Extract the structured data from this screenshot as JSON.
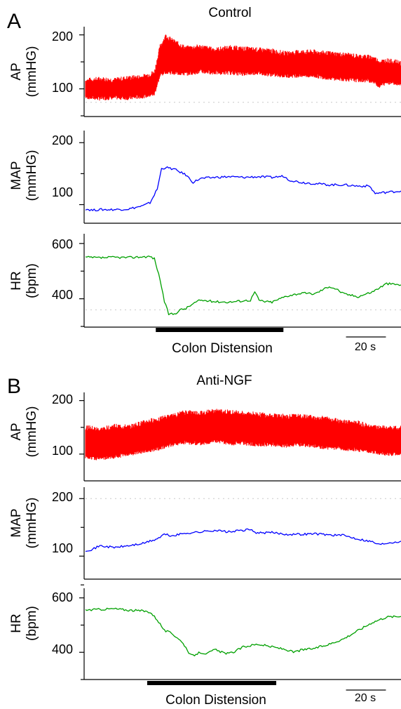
{
  "panels": [
    {
      "letter": "A",
      "title": "Control",
      "stimulus_label": "Colon Distension",
      "stimulus_start_s": 49,
      "stimulus_end_s": 138,
      "scale_bar_label": "20 s",
      "scale_bar_seconds": 20
    },
    {
      "letter": "B",
      "title": "Anti-NGF",
      "stimulus_label": "Colon Distension",
      "stimulus_start_s": 43,
      "stimulus_end_s": 133,
      "scale_bar_label": "20 s",
      "scale_bar_seconds": 20
    }
  ],
  "chart_data": [
    {
      "panel": "A",
      "title": "Control",
      "type": "line",
      "ylabel": [
        "AP",
        "(mmHG)"
      ],
      "x_range_s": [
        0,
        220
      ],
      "ylim": [
        50,
        210
      ],
      "yticks": [
        "200",
        "100"
      ],
      "ytick_values": [
        200,
        100
      ],
      "minor_ticks": [
        50,
        150
      ],
      "reference_line": 75,
      "color": "#ff0000",
      "band": true,
      "series": [
        {
          "x": [
            0,
            10,
            20,
            30,
            40,
            48,
            52,
            56,
            60,
            70,
            80,
            90,
            100,
            110,
            120,
            130,
            140,
            150,
            160,
            170,
            180,
            190,
            200,
            205,
            210,
            220
          ],
          "upper": [
            115,
            118,
            116,
            120,
            122,
            130,
            178,
            198,
            190,
            175,
            178,
            172,
            176,
            174,
            172,
            170,
            165,
            168,
            168,
            165,
            163,
            160,
            158,
            150,
            152,
            148
          ],
          "lower": [
            85,
            82,
            84,
            83,
            86,
            90,
            125,
            132,
            130,
            128,
            132,
            130,
            130,
            128,
            130,
            126,
            124,
            125,
            124,
            120,
            118,
            116,
            115,
            105,
            112,
            110
          ]
        }
      ]
    },
    {
      "panel": "A",
      "type": "line",
      "ylabel": [
        "MAP",
        "(mmHG)"
      ],
      "x_range_s": [
        0,
        220
      ],
      "ylim": [
        70,
        215
      ],
      "yticks": [
        "200",
        "100"
      ],
      "ytick_values": [
        200,
        100
      ],
      "minor_ticks": [
        150
      ],
      "color": "#0000ff",
      "series": [
        {
          "x": [
            0,
            5,
            10,
            20,
            30,
            40,
            45,
            50,
            53,
            56,
            62,
            70,
            75,
            80,
            90,
            100,
            110,
            120,
            130,
            138,
            142,
            150,
            160,
            170,
            180,
            190,
            198,
            202,
            210,
            220
          ],
          "y": [
            93,
            91,
            92,
            92,
            93,
            98,
            103,
            125,
            158,
            160,
            157,
            148,
            136,
            142,
            144,
            145,
            144,
            145,
            144,
            146,
            140,
            136,
            134,
            132,
            132,
            130,
            130,
            118,
            120,
            122
          ]
        }
      ]
    },
    {
      "panel": "A",
      "type": "line",
      "ylabel": [
        "HR",
        "(bpm)"
      ],
      "x_range_s": [
        0,
        220
      ],
      "ylim": [
        300,
        625
      ],
      "yticks": [
        "600",
        "400"
      ],
      "ytick_values": [
        600,
        400
      ],
      "minor_ticks": [
        500,
        300
      ],
      "reference_line": 360,
      "color": "#00a000",
      "series": [
        {
          "x": [
            0,
            10,
            20,
            30,
            40,
            45,
            48,
            52,
            55,
            58,
            62,
            66,
            70,
            76,
            80,
            90,
            100,
            110,
            115,
            118,
            121,
            125,
            130,
            140,
            150,
            160,
            165,
            170,
            175,
            180,
            190,
            200,
            210,
            220
          ],
          "y": [
            550,
            548,
            550,
            549,
            552,
            553,
            545,
            470,
            390,
            345,
            345,
            360,
            365,
            385,
            395,
            390,
            388,
            393,
            395,
            425,
            395,
            390,
            388,
            410,
            420,
            418,
            432,
            445,
            435,
            418,
            408,
            425,
            455,
            450
          ]
        }
      ]
    },
    {
      "panel": "B",
      "title": "Anti-NGF",
      "type": "line",
      "ylabel": [
        "AP",
        "(mmHG)"
      ],
      "x_range_s": [
        0,
        220
      ],
      "ylim": [
        50,
        210
      ],
      "yticks": [
        "200",
        "100"
      ],
      "ytick_values": [
        200,
        100
      ],
      "minor_ticks": [
        150
      ],
      "color": "#ff0000",
      "band": true,
      "series": [
        {
          "x": [
            0,
            10,
            20,
            30,
            40,
            50,
            60,
            70,
            80,
            90,
            100,
            110,
            120,
            130,
            140,
            150,
            160,
            170,
            180,
            190,
            200,
            210,
            220
          ],
          "upper": [
            150,
            145,
            152,
            150,
            158,
            165,
            170,
            178,
            176,
            180,
            178,
            176,
            174,
            172,
            170,
            170,
            168,
            165,
            160,
            158,
            150,
            148,
            148
          ],
          "lower": [
            95,
            92,
            95,
            100,
            105,
            110,
            118,
            122,
            120,
            125,
            120,
            120,
            118,
            118,
            116,
            118,
            115,
            112,
            110,
            108,
            105,
            100,
            102
          ]
        }
      ]
    },
    {
      "panel": "B",
      "type": "line",
      "ylabel": [
        "MAP",
        "(mmHG)"
      ],
      "x_range_s": [
        0,
        220
      ],
      "ylim": [
        60,
        215
      ],
      "yticks": [
        "200",
        "100"
      ],
      "ytick_values": [
        200,
        100
      ],
      "minor_ticks": [
        150,
        50
      ],
      "reference_line": 200,
      "color": "#0000ff",
      "series": [
        {
          "x": [
            0,
            5,
            10,
            20,
            30,
            40,
            50,
            55,
            60,
            70,
            80,
            90,
            100,
            110,
            115,
            120,
            130,
            140,
            150,
            160,
            170,
            180,
            190,
            200,
            205,
            210,
            220
          ],
          "y": [
            110,
            112,
            118,
            115,
            118,
            122,
            130,
            138,
            135,
            140,
            142,
            145,
            142,
            145,
            146,
            140,
            141,
            138,
            138,
            139,
            137,
            136,
            130,
            125,
            120,
            123,
            126
          ]
        }
      ]
    },
    {
      "panel": "B",
      "type": "line",
      "ylabel": [
        "HR",
        "(bpm)"
      ],
      "x_range_s": [
        0,
        220
      ],
      "ylim": [
        300,
        625
      ],
      "yticks": [
        "600",
        "400"
      ],
      "ytick_values": [
        600,
        400
      ],
      "minor_ticks": [
        500,
        300
      ],
      "color": "#00a000",
      "series": [
        {
          "x": [
            0,
            10,
            20,
            30,
            40,
            45,
            50,
            55,
            60,
            65,
            70,
            72,
            75,
            80,
            85,
            90,
            95,
            100,
            105,
            110,
            120,
            130,
            140,
            145,
            150,
            160,
            170,
            180,
            190,
            200,
            210,
            220
          ],
          "y": [
            555,
            558,
            560,
            555,
            552,
            548,
            520,
            480,
            470,
            450,
            420,
            392,
            388,
            400,
            395,
            410,
            400,
            395,
            405,
            420,
            430,
            420,
            410,
            400,
            408,
            415,
            430,
            450,
            480,
            510,
            530,
            532
          ]
        }
      ]
    }
  ]
}
